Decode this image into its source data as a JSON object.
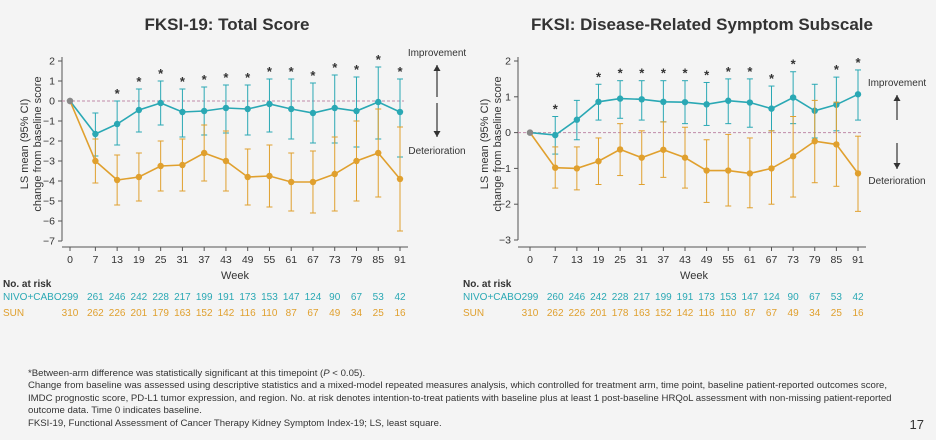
{
  "colors": {
    "nivo": "#2aa8b4",
    "sun": "#e0a02e",
    "axis": "#555555",
    "baseline": "#c08aa8"
  },
  "weeks": [
    0,
    7,
    13,
    19,
    25,
    31,
    37,
    43,
    49,
    55,
    61,
    67,
    73,
    79,
    85,
    91
  ],
  "chart_data": [
    {
      "type": "line",
      "title": "FKSI-19: Total Score",
      "xlabel": "Week",
      "ylabel": "LS mean (95% CI) change from baseline score",
      "ylim": [
        -7,
        2
      ],
      "yticks": [
        2,
        1,
        0,
        -1,
        -2,
        -3,
        -4,
        -5,
        -6,
        -7
      ],
      "x": [
        0,
        7,
        13,
        19,
        25,
        31,
        37,
        43,
        49,
        55,
        61,
        67,
        73,
        79,
        85,
        91
      ],
      "series": [
        {
          "name": "NIVO+CABO",
          "values": [
            0,
            -1.65,
            -1.15,
            -0.45,
            -0.1,
            -0.55,
            -0.5,
            -0.35,
            -0.4,
            -0.15,
            -0.4,
            -0.6,
            -0.35,
            -0.5,
            -0.05,
            -0.55
          ],
          "ci_low": [
            0,
            -2.75,
            -2.2,
            -1.55,
            -1.2,
            -1.8,
            -1.7,
            -1.6,
            -1.7,
            -1.55,
            -1.9,
            -2.1,
            -2.1,
            -2.3,
            -1.9,
            -2.8
          ],
          "ci_high": [
            0,
            -0.6,
            0.0,
            0.6,
            1.0,
            0.6,
            0.7,
            0.8,
            0.8,
            1.1,
            1.1,
            0.9,
            1.3,
            1.2,
            1.7,
            1.1
          ]
        },
        {
          "name": "SUN",
          "values": [
            0,
            -3.0,
            -3.95,
            -3.8,
            -3.25,
            -3.2,
            -2.6,
            -3.0,
            -3.8,
            -3.75,
            -4.05,
            -4.05,
            -3.65,
            -3.0,
            -2.6,
            -3.9
          ],
          "ci_low": [
            0,
            -4.1,
            -5.2,
            -5.0,
            -4.5,
            -4.5,
            -4.0,
            -4.5,
            -5.2,
            -5.3,
            -5.5,
            -5.6,
            -5.5,
            -5.0,
            -4.8,
            -6.5
          ],
          "ci_high": [
            0,
            -1.9,
            -2.7,
            -2.6,
            -2.0,
            -1.9,
            -1.2,
            -1.5,
            -2.4,
            -2.2,
            -2.6,
            -2.5,
            -1.8,
            -1.0,
            -0.4,
            -1.3
          ]
        }
      ],
      "significant": [
        13,
        19,
        25,
        31,
        37,
        43,
        49,
        55,
        61,
        67,
        73,
        79,
        85,
        91
      ],
      "annotations": {
        "up": "Improvement",
        "down": "Deterioration"
      },
      "at_risk": {
        "NIVO+CABO": [
          299,
          261,
          246,
          242,
          228,
          217,
          199,
          191,
          173,
          153,
          147,
          124,
          90,
          67,
          53,
          42
        ],
        "SUN": [
          310,
          262,
          226,
          201,
          179,
          163,
          152,
          142,
          116,
          110,
          87,
          67,
          49,
          34,
          25,
          16
        ]
      }
    },
    {
      "type": "line",
      "title": "FKSI: Disease-Related Symptom Subscale",
      "xlabel": "Week",
      "ylabel": "LS mean (95% CI) change from baseline score",
      "ylim": [
        -3,
        2
      ],
      "yticks": [
        2,
        1,
        0,
        -1,
        -2,
        -3
      ],
      "x": [
        0,
        7,
        13,
        19,
        25,
        31,
        37,
        43,
        49,
        55,
        61,
        67,
        73,
        79,
        85,
        91
      ],
      "series": [
        {
          "name": "NIVO+CABO",
          "values": [
            0,
            -0.07,
            0.36,
            0.86,
            0.95,
            0.93,
            0.86,
            0.85,
            0.79,
            0.89,
            0.84,
            0.67,
            0.98,
            0.61,
            0.78,
            1.07
          ],
          "ci_low": [
            0,
            -0.6,
            -0.2,
            0.35,
            0.4,
            0.35,
            0.3,
            0.25,
            0.2,
            0.25,
            0.15,
            0.05,
            0.25,
            -0.15,
            0.05,
            0.35
          ],
          "ci_high": [
            0,
            0.45,
            0.9,
            1.35,
            1.45,
            1.45,
            1.45,
            1.45,
            1.4,
            1.5,
            1.5,
            1.3,
            1.7,
            1.35,
            1.55,
            1.75
          ]
        },
        {
          "name": "SUN",
          "values": [
            0,
            -0.98,
            -1.0,
            -0.8,
            -0.47,
            -0.7,
            -0.48,
            -0.7,
            -1.06,
            -1.06,
            -1.14,
            -1.0,
            -0.66,
            -0.24,
            -0.33,
            -1.14
          ],
          "ci_low": [
            0,
            -1.55,
            -1.6,
            -1.45,
            -1.2,
            -1.45,
            -1.25,
            -1.55,
            -1.95,
            -2.05,
            -2.1,
            -2.0,
            -1.8,
            -1.4,
            -1.5,
            -2.2
          ],
          "ci_high": [
            0,
            -0.4,
            -0.4,
            -0.15,
            0.25,
            0.05,
            0.3,
            0.15,
            -0.2,
            -0.05,
            -0.15,
            0.05,
            0.45,
            0.9,
            0.85,
            -0.1
          ]
        }
      ],
      "significant": [
        7,
        19,
        25,
        31,
        37,
        43,
        49,
        55,
        61,
        67,
        73,
        85,
        91
      ],
      "annotations": {
        "up": "Improvement",
        "down": "Deterioration"
      },
      "at_risk": {
        "NIVO+CABO": [
          299,
          260,
          246,
          242,
          228,
          217,
          199,
          191,
          173,
          153,
          147,
          124,
          90,
          67,
          53,
          42
        ],
        "SUN": [
          310,
          262,
          226,
          201,
          178,
          163,
          152,
          142,
          116,
          110,
          87,
          67,
          49,
          34,
          25,
          16
        ]
      }
    }
  ],
  "at_risk_title": "No. at risk",
  "footnotes": {
    "sig_pre": "*Between-arm difference was statistically significant at this timepoint (",
    "sig_p": "P",
    "sig_post": " < 0.05).",
    "method": "Change from baseline was assessed using descriptive statistics and a mixed-model repeated measures analysis, which controlled for treatment arm, time point, baseline patient-reported outcomes score, IMDC prognostic score, PD-L1 tumor expression, and region. No. at risk denotes intention-to-treat patients with baseline plus at least 1 post-baseline HRQoL assessment with non-missing patient-reported outcome data. Time 0 indicates baseline.",
    "abbrev": "FKSI-19, Functional Assessment of Cancer Therapy Kidney Symptom Index-19; LS, least square."
  },
  "page_number": "17"
}
